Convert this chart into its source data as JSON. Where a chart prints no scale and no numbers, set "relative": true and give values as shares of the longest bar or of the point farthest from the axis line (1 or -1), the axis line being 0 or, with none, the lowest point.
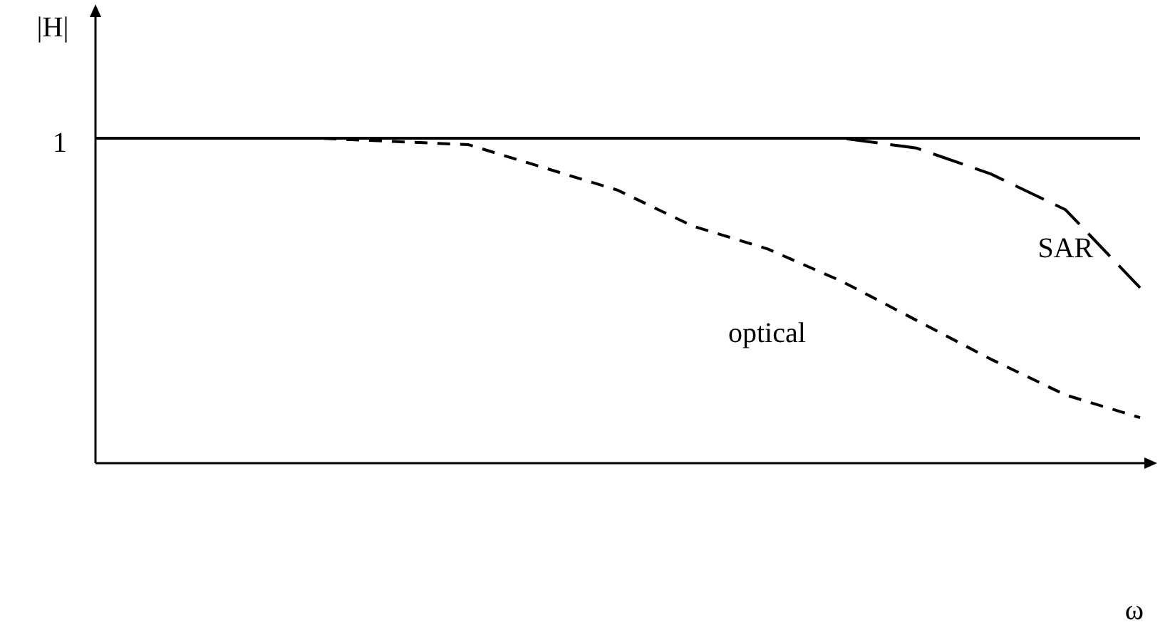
{
  "chart_data": {
    "type": "line",
    "relative": true,
    "xlabel": "ω",
    "ylabel": "|H|",
    "categories": [
      null,
      null,
      null,
      null,
      null,
      null,
      null,
      null,
      null,
      null,
      null,
      null,
      null,
      null,
      null
    ],
    "series": [
      {
        "name": "optical",
        "color": "#000000",
        "line_style": "dashed",
        "values": [
          1,
          1,
          1,
          1,
          0.99,
          0.98,
          0.91,
          0.84,
          0.73,
          0.66,
          0.56,
          0.44,
          0.32,
          0.21,
          0.14
        ]
      },
      {
        "name": "SAR",
        "color": "#000000",
        "line_style": "dashed",
        "values": [
          1,
          1,
          1,
          1,
          1,
          1,
          1,
          1,
          1,
          1,
          1,
          0.97,
          0.89,
          0.78,
          0.54
        ]
      }
    ],
    "ref_lines": [
      {
        "axis": "y",
        "value": 1,
        "label": "1",
        "color": "#000000",
        "line_style": "solid"
      }
    ],
    "marker": "none",
    "grid": false,
    "legend": false
  }
}
